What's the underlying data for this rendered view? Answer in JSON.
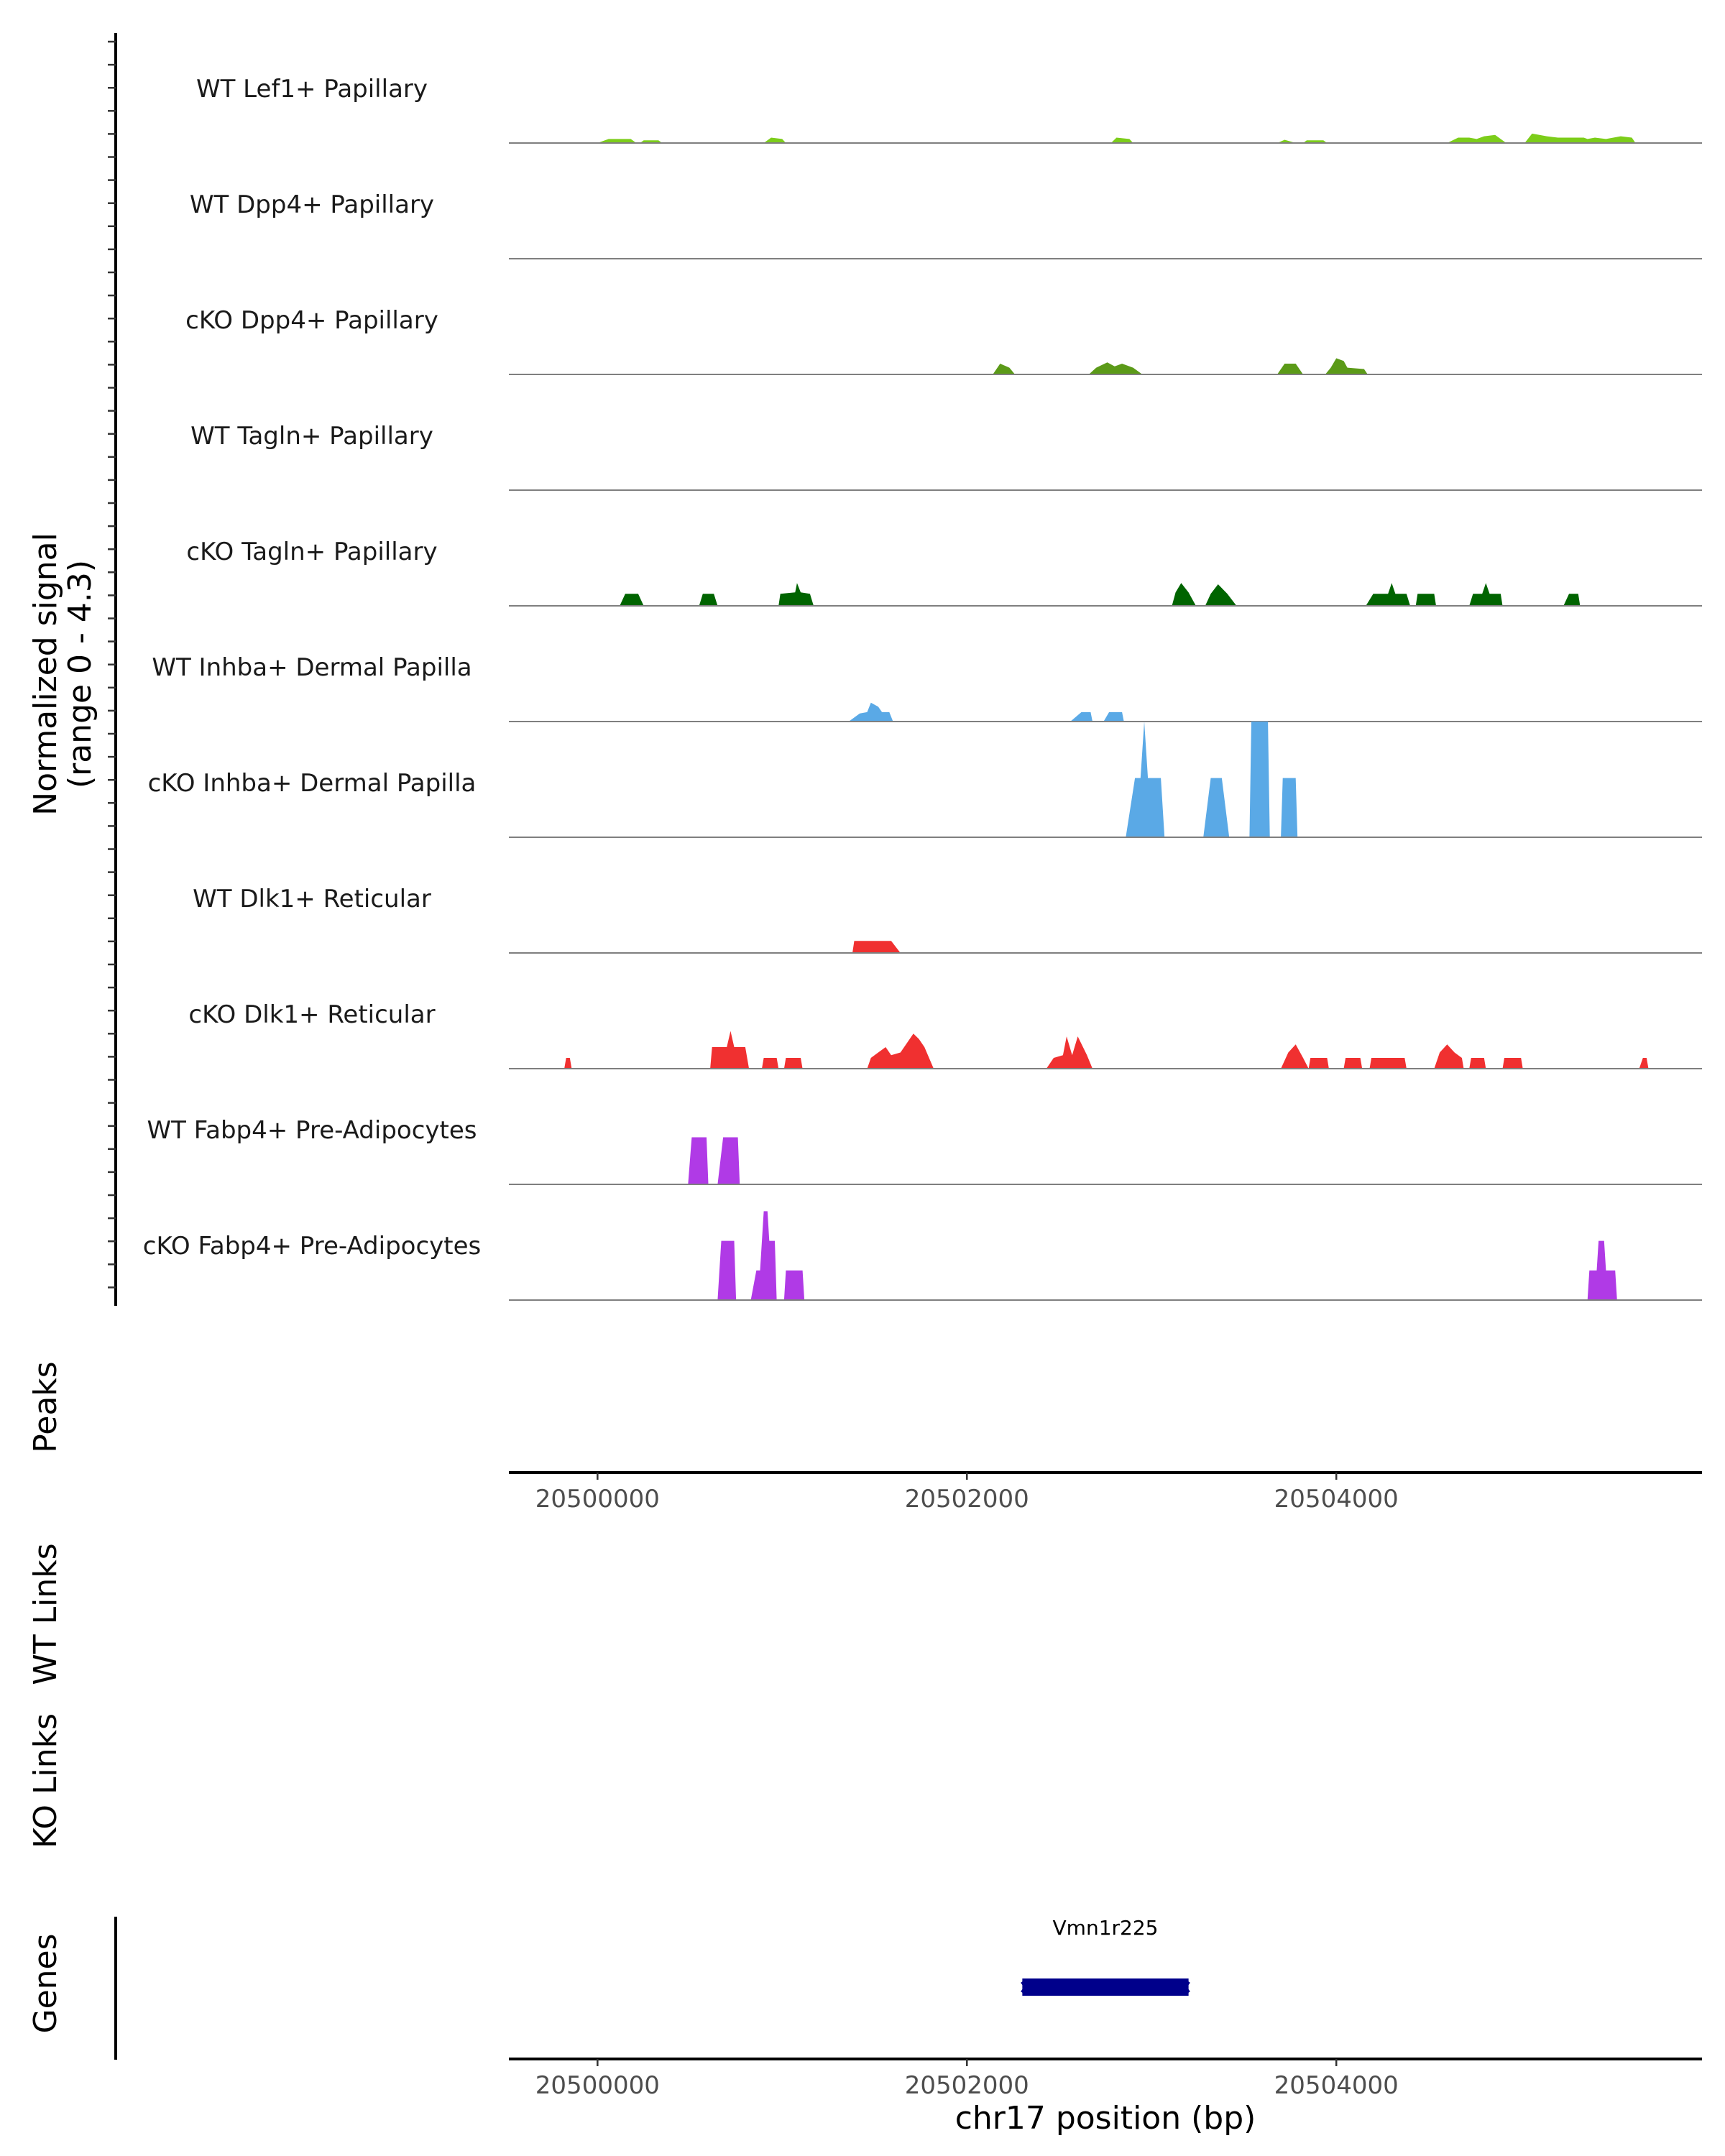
{
  "chart_data": {
    "type": "area",
    "xlabel": "chr17 position (bp)",
    "ylabel_line1": "Normalized signal",
    "ylabel_line2": "(range 0 - 4.3)",
    "ylim": [
      0,
      4.3
    ],
    "xlim": [
      20499520,
      20505980
    ],
    "xticks": [
      20500000,
      20502000,
      20504000
    ],
    "xtick_labels": [
      "20500000",
      "20502000",
      "20504000"
    ],
    "panel_labels": {
      "peaks": "Peaks",
      "wt_links": "WT Links",
      "ko_links": "KO Links",
      "genes": "Genes"
    },
    "genes": [
      {
        "name": "Vmn1r225",
        "start": 20502300,
        "end": 20503200,
        "strand": "-",
        "color": "#00008b"
      }
    ],
    "series": [
      {
        "name": "WT Lef1+ Papillary",
        "color": "#7ccd1a",
        "points": [
          [
            20500000,
            0
          ],
          [
            20500060,
            0.15
          ],
          [
            20500180,
            0.15
          ],
          [
            20500210,
            0
          ],
          [
            20500230,
            0
          ],
          [
            20500250,
            0.1
          ],
          [
            20500330,
            0.1
          ],
          [
            20500350,
            0
          ],
          [
            20500900,
            0
          ],
          [
            20500940,
            0.2
          ],
          [
            20501000,
            0.15
          ],
          [
            20501020,
            0
          ],
          [
            20502780,
            0
          ],
          [
            20502810,
            0.2
          ],
          [
            20502880,
            0.15
          ],
          [
            20502900,
            0
          ],
          [
            20503680,
            0
          ],
          [
            20503720,
            0.12
          ],
          [
            20503780,
            0
          ],
          [
            20503820,
            0
          ],
          [
            20503840,
            0.1
          ],
          [
            20503930,
            0.1
          ],
          [
            20503950,
            0
          ],
          [
            20504600,
            0
          ],
          [
            20504660,
            0.2
          ],
          [
            20504720,
            0.2
          ],
          [
            20504760,
            0.15
          ],
          [
            20504800,
            0.25
          ],
          [
            20504860,
            0.3
          ],
          [
            20504920,
            0
          ],
          [
            20505020,
            0
          ],
          [
            20505060,
            0.35
          ],
          [
            20505100,
            0.3
          ],
          [
            20505140,
            0.25
          ],
          [
            20505200,
            0.2
          ],
          [
            20505340,
            0.2
          ],
          [
            20505360,
            0.15
          ],
          [
            20505400,
            0.2
          ],
          [
            20505460,
            0.15
          ],
          [
            20505500,
            0.2
          ],
          [
            20505540,
            0.25
          ],
          [
            20505600,
            0.2
          ],
          [
            20505620,
            0
          ]
        ]
      },
      {
        "name": "WT Dpp4+ Papillary",
        "color": "#4b9e16",
        "points": []
      },
      {
        "name": "cKO Dpp4+ Papillary",
        "color": "#5b9a18",
        "points": [
          [
            20502140,
            0
          ],
          [
            20502180,
            0.4
          ],
          [
            20502230,
            0.25
          ],
          [
            20502260,
            0
          ],
          [
            20502660,
            0
          ],
          [
            20502700,
            0.25
          ],
          [
            20502760,
            0.45
          ],
          [
            20502800,
            0.3
          ],
          [
            20502840,
            0.4
          ],
          [
            20502900,
            0.25
          ],
          [
            20502950,
            0
          ],
          [
            20503680,
            0
          ],
          [
            20503720,
            0.4
          ],
          [
            20503780,
            0.4
          ],
          [
            20503820,
            0
          ],
          [
            20503940,
            0
          ],
          [
            20503970,
            0.25
          ],
          [
            20504000,
            0.6
          ],
          [
            20504040,
            0.5
          ],
          [
            20504060,
            0.25
          ],
          [
            20504150,
            0.2
          ],
          [
            20504170,
            0
          ]
        ]
      },
      {
        "name": "WT Tagln+ Papillary",
        "color": "#006400",
        "points": []
      },
      {
        "name": "cKO Tagln+ Papillary",
        "color": "#006400",
        "points": [
          [
            20500120,
            0
          ],
          [
            20500150,
            0.45
          ],
          [
            20500220,
            0.45
          ],
          [
            20500250,
            0
          ],
          [
            20500550,
            0
          ],
          [
            20500570,
            0.45
          ],
          [
            20500630,
            0.45
          ],
          [
            20500650,
            0
          ],
          [
            20500980,
            0
          ],
          [
            20500990,
            0.45
          ],
          [
            20501070,
            0.5
          ],
          [
            20501080,
            0.85
          ],
          [
            20501100,
            0.5
          ],
          [
            20501150,
            0.45
          ],
          [
            20501170,
            0
          ],
          [
            20503110,
            0
          ],
          [
            20503130,
            0.5
          ],
          [
            20503160,
            0.85
          ],
          [
            20503200,
            0.5
          ],
          [
            20503240,
            0
          ],
          [
            20503290,
            0
          ],
          [
            20503320,
            0.45
          ],
          [
            20503360,
            0.8
          ],
          [
            20503410,
            0.45
          ],
          [
            20503460,
            0
          ],
          [
            20504160,
            0
          ],
          [
            20504200,
            0.45
          ],
          [
            20504280,
            0.45
          ],
          [
            20504300,
            0.85
          ],
          [
            20504320,
            0.45
          ],
          [
            20504380,
            0.45
          ],
          [
            20504400,
            0
          ],
          [
            20504430,
            0
          ],
          [
            20504440,
            0.45
          ],
          [
            20504530,
            0.45
          ],
          [
            20504540,
            0
          ],
          [
            20504720,
            0
          ],
          [
            20504740,
            0.45
          ],
          [
            20504790,
            0.45
          ],
          [
            20504810,
            0.85
          ],
          [
            20504830,
            0.45
          ],
          [
            20504890,
            0.45
          ],
          [
            20504900,
            0
          ],
          [
            20505230,
            0
          ],
          [
            20505260,
            0.45
          ],
          [
            20505310,
            0.45
          ],
          [
            20505320,
            0
          ]
        ]
      },
      {
        "name": "WT Inhba+ Dermal Papilla",
        "color": "#5aa9e6",
        "points": [
          [
            20501360,
            0
          ],
          [
            20501420,
            0.3
          ],
          [
            20501460,
            0.35
          ],
          [
            20501480,
            0.7
          ],
          [
            20501520,
            0.55
          ],
          [
            20501540,
            0.35
          ],
          [
            20501580,
            0.35
          ],
          [
            20501600,
            0
          ],
          [
            20502560,
            0
          ],
          [
            20502620,
            0.35
          ],
          [
            20502670,
            0.35
          ],
          [
            20502680,
            0
          ],
          [
            20502740,
            0
          ],
          [
            20502770,
            0.35
          ],
          [
            20502840,
            0.35
          ],
          [
            20502850,
            0
          ]
        ]
      },
      {
        "name": "cKO Inhba+ Dermal Papilla",
        "color": "#5aa9e6",
        "points": [
          [
            20502860,
            0
          ],
          [
            20502910,
            2.2
          ],
          [
            20502940,
            2.2
          ],
          [
            20502960,
            4.3
          ],
          [
            20502980,
            2.2
          ],
          [
            20503050,
            2.2
          ],
          [
            20503070,
            0
          ],
          [
            20503280,
            0
          ],
          [
            20503320,
            2.2
          ],
          [
            20503380,
            2.2
          ],
          [
            20503420,
            0
          ],
          [
            20503530,
            0
          ],
          [
            20503540,
            4.3
          ],
          [
            20503630,
            4.3
          ],
          [
            20503640,
            0
          ],
          [
            20503700,
            0
          ],
          [
            20503710,
            2.2
          ],
          [
            20503780,
            2.2
          ],
          [
            20503790,
            0
          ]
        ]
      },
      {
        "name": "WT Dlk1+ Reticular",
        "color": "#f03030",
        "points": [
          [
            20501380,
            0
          ],
          [
            20501390,
            0.45
          ],
          [
            20501590,
            0.45
          ],
          [
            20501640,
            0
          ]
        ]
      },
      {
        "name": "cKO Dlk1+ Reticular",
        "color": "#f03030",
        "points": [
          [
            20499820,
            0
          ],
          [
            20499830,
            0.4
          ],
          [
            20499850,
            0.4
          ],
          [
            20499860,
            0
          ],
          [
            20500610,
            0
          ],
          [
            20500620,
            0.8
          ],
          [
            20500700,
            0.8
          ],
          [
            20500720,
            1.4
          ],
          [
            20500740,
            0.8
          ],
          [
            20500800,
            0.8
          ],
          [
            20500820,
            0
          ],
          [
            20500890,
            0
          ],
          [
            20500900,
            0.4
          ],
          [
            20500970,
            0.4
          ],
          [
            20500980,
            0
          ],
          [
            20501010,
            0
          ],
          [
            20501020,
            0.4
          ],
          [
            20501100,
            0.4
          ],
          [
            20501110,
            0
          ],
          [
            20501460,
            0
          ],
          [
            20501480,
            0.4
          ],
          [
            20501520,
            0.6
          ],
          [
            20501560,
            0.8
          ],
          [
            20501590,
            0.5
          ],
          [
            20501640,
            0.6
          ],
          [
            20501680,
            1.0
          ],
          [
            20501710,
            1.3
          ],
          [
            20501740,
            1.1
          ],
          [
            20501770,
            0.8
          ],
          [
            20501820,
            0
          ],
          [
            20502430,
            0
          ],
          [
            20502470,
            0.4
          ],
          [
            20502520,
            0.5
          ],
          [
            20502540,
            1.2
          ],
          [
            20502570,
            0.5
          ],
          [
            20502600,
            1.2
          ],
          [
            20502650,
            0.5
          ],
          [
            20502680,
            0
          ],
          [
            20503700,
            0
          ],
          [
            20503740,
            0.6
          ],
          [
            20503780,
            0.9
          ],
          [
            20503820,
            0.4
          ],
          [
            20503850,
            0
          ],
          [
            20503860,
            0.4
          ],
          [
            20503950,
            0.4
          ],
          [
            20503960,
            0
          ],
          [
            20504040,
            0
          ],
          [
            20504050,
            0.4
          ],
          [
            20504130,
            0.4
          ],
          [
            20504140,
            0
          ],
          [
            20504180,
            0
          ],
          [
            20504190,
            0.4
          ],
          [
            20504370,
            0.4
          ],
          [
            20504380,
            0
          ],
          [
            20504530,
            0
          ],
          [
            20504560,
            0.6
          ],
          [
            20504600,
            0.9
          ],
          [
            20504640,
            0.6
          ],
          [
            20504680,
            0.4
          ],
          [
            20504690,
            0
          ],
          [
            20504720,
            0
          ],
          [
            20504730,
            0.4
          ],
          [
            20504800,
            0.4
          ],
          [
            20504810,
            0
          ],
          [
            20504900,
            0
          ],
          [
            20504910,
            0.4
          ],
          [
            20505000,
            0.4
          ],
          [
            20505010,
            0
          ],
          [
            20505640,
            0
          ],
          [
            20505660,
            0.4
          ],
          [
            20505680,
            0.4
          ],
          [
            20505690,
            0
          ]
        ]
      },
      {
        "name": "WT Fabp4+ Pre-Adipocytes",
        "color": "#b03ae6",
        "points": [
          [
            20500490,
            0
          ],
          [
            20500510,
            1.75
          ],
          [
            20500590,
            1.75
          ],
          [
            20500600,
            0
          ],
          [
            20500650,
            0
          ],
          [
            20500680,
            1.75
          ],
          [
            20500760,
            1.75
          ],
          [
            20500770,
            0
          ]
        ]
      },
      {
        "name": "cKO Fabp4+ Pre-Adipocytes",
        "color": "#b03ae6",
        "points": [
          [
            20500650,
            0
          ],
          [
            20500670,
            2.2
          ],
          [
            20500740,
            2.2
          ],
          [
            20500750,
            0
          ],
          [
            20500830,
            0
          ],
          [
            20500860,
            1.1
          ],
          [
            20500880,
            1.1
          ],
          [
            20500900,
            3.3
          ],
          [
            20500920,
            3.3
          ],
          [
            20500930,
            2.2
          ],
          [
            20500960,
            2.2
          ],
          [
            20500970,
            0
          ],
          [
            20501010,
            0
          ],
          [
            20501020,
            1.1
          ],
          [
            20501110,
            1.1
          ],
          [
            20501120,
            0
          ],
          [
            20505360,
            0
          ],
          [
            20505370,
            1.1
          ],
          [
            20505410,
            1.1
          ],
          [
            20505420,
            2.2
          ],
          [
            20505450,
            2.2
          ],
          [
            20505460,
            1.1
          ],
          [
            20505510,
            1.1
          ],
          [
            20505520,
            0
          ]
        ]
      }
    ]
  }
}
